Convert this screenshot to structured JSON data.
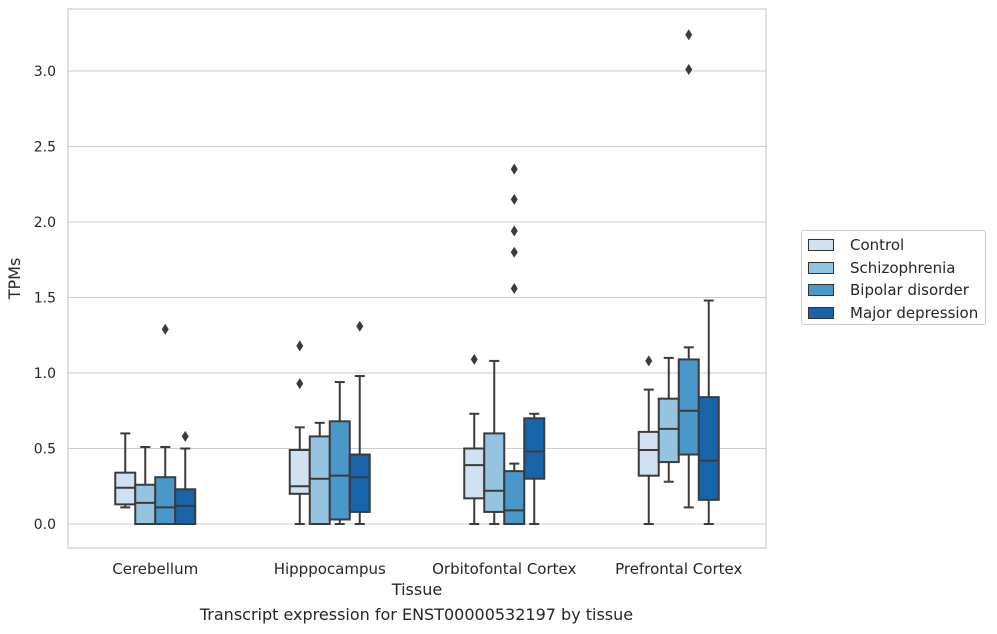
{
  "caption": "Transcript expression for ENST00000532197 by tissue",
  "chart_data": {
    "type": "box",
    "xlabel": "Tissue",
    "ylabel": "TPMs",
    "ylim": [
      -0.16,
      3.42
    ],
    "yticks": [
      "0.0",
      "0.5",
      "1.0",
      "1.5",
      "2.0",
      "2.5",
      "3.0"
    ],
    "grid": true,
    "legend_position": "right",
    "categories": [
      "Cerebellum",
      "Hipppocampus",
      "Orbitofontal Cortex",
      "Prefrontal Cortex"
    ],
    "series": [
      {
        "name": "Control",
        "color": "#d0e1f2",
        "boxes": [
          {
            "whisker_low": 0.11,
            "q1": 0.13,
            "median": 0.24,
            "q3": 0.34,
            "whisker_high": 0.6,
            "outliers": []
          },
          {
            "whisker_low": 0.0,
            "q1": 0.2,
            "median": 0.25,
            "q3": 0.49,
            "whisker_high": 0.64,
            "outliers": [
              0.93,
              1.18
            ]
          },
          {
            "whisker_low": 0.0,
            "q1": 0.17,
            "median": 0.39,
            "q3": 0.5,
            "whisker_high": 0.73,
            "outliers": [
              1.09
            ]
          },
          {
            "whisker_low": 0.0,
            "q1": 0.32,
            "median": 0.49,
            "q3": 0.61,
            "whisker_high": 0.89,
            "outliers": [
              1.08
            ]
          }
        ]
      },
      {
        "name": "Schizophrenia",
        "color": "#94c4df",
        "boxes": [
          {
            "whisker_low": 0.0,
            "q1": 0.0,
            "median": 0.14,
            "q3": 0.26,
            "whisker_high": 0.51,
            "outliers": []
          },
          {
            "whisker_low": 0.0,
            "q1": 0.0,
            "median": 0.3,
            "q3": 0.58,
            "whisker_high": 0.67,
            "outliers": []
          },
          {
            "whisker_low": 0.0,
            "q1": 0.08,
            "median": 0.22,
            "q3": 0.6,
            "whisker_high": 1.08,
            "outliers": []
          },
          {
            "whisker_low": 0.28,
            "q1": 0.41,
            "median": 0.63,
            "q3": 0.83,
            "whisker_high": 1.1,
            "outliers": []
          }
        ]
      },
      {
        "name": "Bipolar disorder",
        "color": "#4a98c9",
        "boxes": [
          {
            "whisker_low": 0.0,
            "q1": 0.0,
            "median": 0.11,
            "q3": 0.31,
            "whisker_high": 0.51,
            "outliers": [
              1.29
            ]
          },
          {
            "whisker_low": 0.0,
            "q1": 0.03,
            "median": 0.32,
            "q3": 0.68,
            "whisker_high": 0.94,
            "outliers": []
          },
          {
            "whisker_low": 0.0,
            "q1": 0.0,
            "median": 0.09,
            "q3": 0.35,
            "whisker_high": 0.4,
            "outliers": [
              1.56,
              1.8,
              1.94,
              2.15,
              2.35
            ]
          },
          {
            "whisker_low": 0.11,
            "q1": 0.46,
            "median": 0.75,
            "q3": 1.09,
            "whisker_high": 1.17,
            "outliers": [
              3.01,
              3.24
            ]
          }
        ]
      },
      {
        "name": "Major depression",
        "color": "#1764ab",
        "boxes": [
          {
            "whisker_low": 0.0,
            "q1": 0.0,
            "median": 0.12,
            "q3": 0.23,
            "whisker_high": 0.5,
            "outliers": [
              0.58
            ]
          },
          {
            "whisker_low": 0.0,
            "q1": 0.08,
            "median": 0.31,
            "q3": 0.46,
            "whisker_high": 0.98,
            "outliers": [
              1.31
            ]
          },
          {
            "whisker_low": 0.0,
            "q1": 0.3,
            "median": 0.48,
            "q3": 0.7,
            "whisker_high": 0.73,
            "outliers": []
          },
          {
            "whisker_low": 0.0,
            "q1": 0.16,
            "median": 0.42,
            "q3": 0.84,
            "whisker_high": 1.48,
            "outliers": []
          }
        ]
      }
    ]
  }
}
